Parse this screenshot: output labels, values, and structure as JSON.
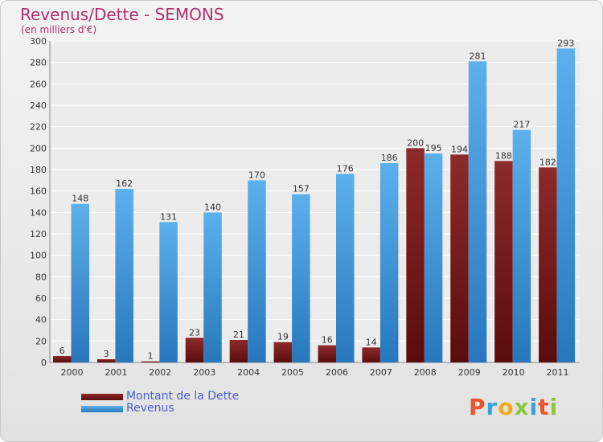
{
  "chart_data": {
    "type": "bar",
    "title": "Revenus/Dette - SEMONS",
    "subtitle": "(en milliers d'€)",
    "categories": [
      "2000",
      "2001",
      "2002",
      "2003",
      "2004",
      "2005",
      "2006",
      "2007",
      "2008",
      "2009",
      "2010",
      "2011"
    ],
    "series": [
      {
        "name": "Montant de la Dette",
        "color": "#7a1a1a",
        "values": [
          6,
          3,
          1,
          23,
          21,
          19,
          16,
          14,
          200,
          194,
          188,
          182
        ]
      },
      {
        "name": "Revenus",
        "color": "#3f95db",
        "values": [
          148,
          162,
          131,
          140,
          170,
          157,
          176,
          186,
          195,
          281,
          217,
          293
        ]
      }
    ],
    "yticks": [
      0,
      20,
      40,
      60,
      80,
      100,
      120,
      140,
      160,
      180,
      200,
      220,
      240,
      260,
      280,
      300
    ],
    "ylim": [
      0,
      300
    ],
    "grid": true,
    "legend_position": "bottom-left"
  },
  "logo": {
    "text": "Proxiti",
    "colors": [
      "#e8552a",
      "#3aa0d8",
      "#f2a81d",
      "#8cc63f",
      "#3aa0d8",
      "#e8552a",
      "#8cc63f"
    ]
  }
}
